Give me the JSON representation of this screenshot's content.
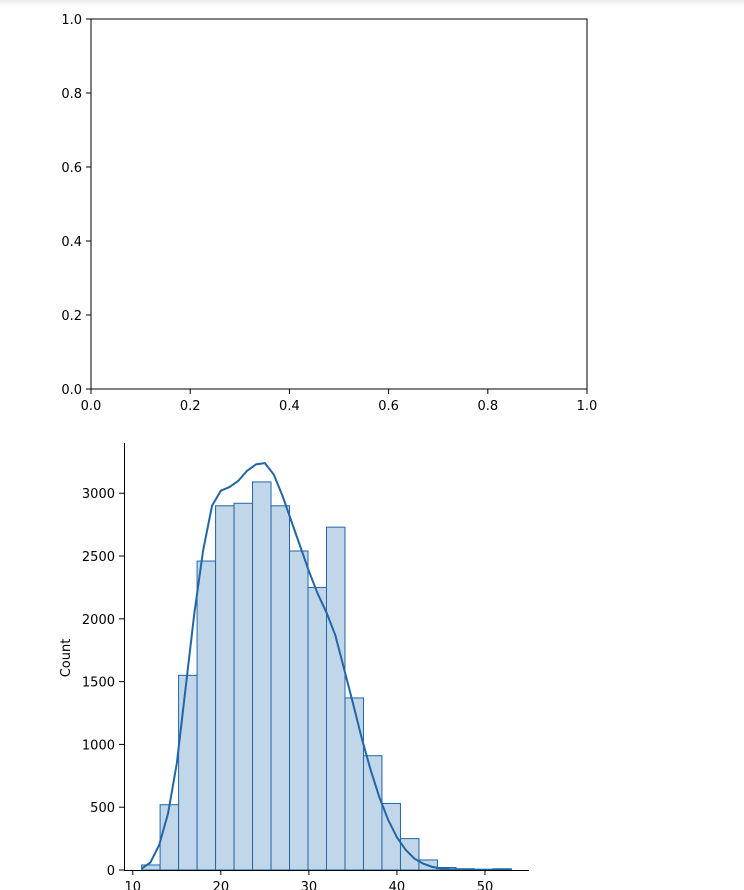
{
  "chart_data": [
    {
      "type": "scatter",
      "title": "",
      "xlabel": "",
      "ylabel": "",
      "xlim": [
        0,
        1
      ],
      "ylim": [
        0,
        1
      ],
      "xticks": [
        "0.0",
        "0.2",
        "0.4",
        "0.6",
        "0.8",
        "1.0"
      ],
      "yticks": [
        "0.0",
        "0.2",
        "0.4",
        "0.6",
        "0.8",
        "1.0"
      ],
      "x": [],
      "y": [],
      "grid": false
    },
    {
      "type": "bar",
      "title": "",
      "xlabel": "",
      "ylabel": "Count",
      "xlim": [
        9,
        55
      ],
      "ylim": [
        0,
        3400
      ],
      "xticks": [
        "10",
        "20",
        "30",
        "40",
        "50"
      ],
      "yticks": [
        "0",
        "500",
        "1000",
        "1500",
        "2000",
        "2500",
        "3000"
      ],
      "bin_edges": [
        11.0,
        13.1,
        15.2,
        17.3,
        19.4,
        21.5,
        23.6,
        25.7,
        27.8,
        29.9,
        32.0,
        34.1,
        36.2,
        38.3,
        40.4,
        42.5,
        44.6,
        46.7,
        48.8,
        50.9,
        53.0
      ],
      "values": [
        40,
        520,
        1550,
        2460,
        2900,
        2920,
        3090,
        2900,
        2540,
        2250,
        2730,
        1370,
        910,
        530,
        250,
        80,
        20,
        10,
        5,
        10
      ],
      "kde": {
        "x": [
          11,
          12,
          13,
          14,
          15,
          16,
          17,
          18,
          19,
          20,
          21,
          22,
          23,
          24,
          25,
          26,
          27,
          28,
          29,
          30,
          31,
          32,
          33,
          34,
          35,
          36,
          37,
          38,
          39,
          40,
          41,
          42,
          43,
          44,
          45,
          46,
          48,
          50,
          53
        ],
        "y": [
          10,
          60,
          200,
          450,
          850,
          1450,
          2050,
          2550,
          2900,
          3020,
          3050,
          3100,
          3180,
          3230,
          3240,
          3150,
          2980,
          2780,
          2580,
          2380,
          2200,
          2050,
          1870,
          1600,
          1330,
          1050,
          800,
          580,
          400,
          260,
          160,
          90,
          50,
          25,
          12,
          6,
          3,
          2,
          1
        ]
      },
      "colors": {
        "fill": "#c2d6ea",
        "edge": "#2166a6",
        "line": "#2166a6"
      },
      "grid": false
    }
  ]
}
